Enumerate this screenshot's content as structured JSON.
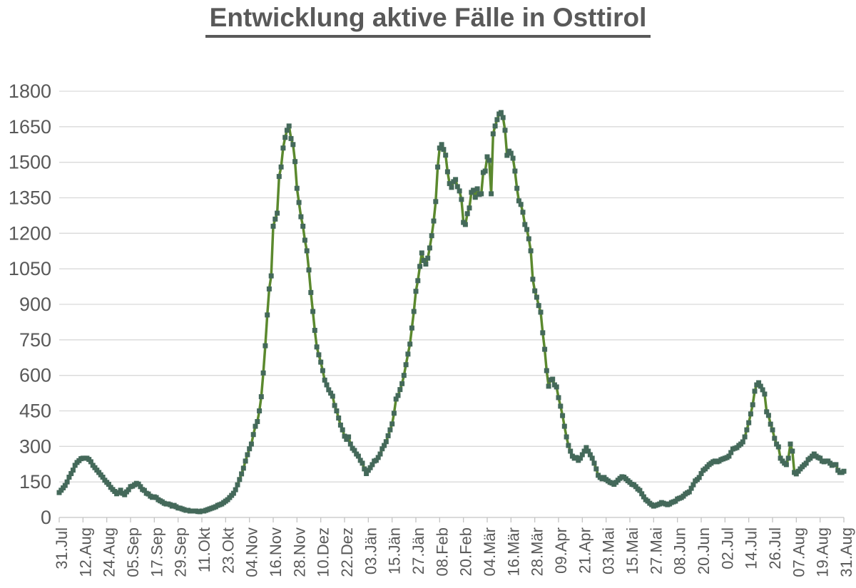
{
  "title": "Entwicklung aktive Fälle in Osttirol",
  "chart_data": {
    "type": "line",
    "title": "Entwicklung aktive Fälle in Osttirol",
    "frequency": "daily",
    "x_tick_interval_days": 12,
    "x_tick_labels": [
      "31.Jul",
      "12.Aug",
      "24.Aug",
      "05.Sep",
      "17.Sep",
      "29.Sep",
      "11.Okt",
      "23.Okt",
      "04.Nov",
      "16.Nov",
      "28.Nov",
      "10.Dez",
      "22.Dez",
      "03.Jän",
      "15.Jän",
      "27.Jän",
      "08.Feb",
      "20.Feb",
      "04.Mär",
      "16.Mär",
      "28.Mär",
      "09.Apr",
      "21.Apr",
      "03.Mai",
      "15.Mai",
      "27.Mai",
      "08.Jun",
      "20.Jun",
      "02.Jul",
      "14.Jul",
      "26.Jul",
      "07.Aug",
      "19.Aug",
      "31.Aug"
    ],
    "ylim": [
      0,
      1800
    ],
    "ytick_step": 150,
    "y_tick_labels": [
      "0",
      "150",
      "300",
      "450",
      "600",
      "750",
      "900",
      "1050",
      "1200",
      "1350",
      "1500",
      "1650",
      "1800"
    ],
    "grid": true,
    "legend": false,
    "line_color": "#5b892e",
    "marker_color": "#44695a",
    "marker_shape": "square",
    "axis_label_color": "#595959",
    "gridline_color": "#d9d9d9",
    "axis_line_color": "#c4c4c4",
    "title_color": "#595959",
    "background": "#ffffff",
    "values": [
      105,
      115,
      125,
      135,
      150,
      170,
      185,
      200,
      220,
      232,
      240,
      248,
      250,
      250,
      250,
      245,
      235,
      220,
      210,
      200,
      190,
      180,
      170,
      157,
      148,
      140,
      127,
      118,
      110,
      100,
      105,
      115,
      102,
      96,
      108,
      117,
      130,
      132,
      138,
      144,
      141,
      130,
      118,
      114,
      102,
      99,
      90,
      85,
      87,
      84,
      75,
      70,
      66,
      60,
      57,
      57,
      54,
      48,
      51,
      45,
      40,
      39,
      36,
      33,
      30,
      30,
      27,
      27,
      27,
      27,
      25,
      24,
      27,
      27,
      30,
      33,
      36,
      39,
      42,
      45,
      51,
      54,
      57,
      63,
      69,
      75,
      84,
      93,
      102,
      117,
      138,
      160,
      184,
      208,
      238,
      265,
      290,
      310,
      350,
      385,
      405,
      450,
      510,
      610,
      725,
      855,
      965,
      1020,
      1230,
      1260,
      1285,
      1440,
      1480,
      1560,
      1605,
      1635,
      1653,
      1600,
      1575,
      1503,
      1390,
      1330,
      1270,
      1230,
      1171,
      1126,
      1045,
      950,
      870,
      790,
      720,
      687,
      656,
      620,
      580,
      560,
      539,
      525,
      512,
      473,
      450,
      420,
      390,
      370,
      343,
      330,
      340,
      310,
      292,
      283,
      268,
      259,
      241,
      229,
      205,
      185,
      199,
      210,
      223,
      238,
      241,
      253,
      268,
      290,
      304,
      320,
      345,
      370,
      395,
      440,
      500,
      515,
      540,
      565,
      600,
      645,
      690,
      732,
      800,
      870,
      955,
      1000,
      1060,
      1117,
      1085,
      1070,
      1095,
      1138,
      1190,
      1252,
      1334,
      1480,
      1560,
      1575,
      1554,
      1530,
      1460,
      1410,
      1394,
      1418,
      1427,
      1397,
      1379,
      1343,
      1246,
      1237,
      1283,
      1307,
      1373,
      1382,
      1352,
      1388,
      1364,
      1367,
      1457,
      1463,
      1523,
      1508,
      1367,
      1620,
      1653,
      1680,
      1704,
      1710,
      1689,
      1635,
      1529,
      1547,
      1538,
      1517,
      1463,
      1390,
      1337,
      1322,
      1289,
      1237,
      1216,
      1177,
      1126,
      1006,
      957,
      930,
      895,
      867,
      780,
      710,
      620,
      554,
      581,
      584,
      560,
      551,
      506,
      470,
      430,
      385,
      340,
      304,
      280,
      259,
      250,
      253,
      241,
      250,
      265,
      280,
      295,
      280,
      265,
      250,
      229,
      205,
      178,
      169,
      163,
      169,
      160,
      154,
      148,
      145,
      140,
      148,
      157,
      165,
      172,
      170,
      163,
      155,
      148,
      140,
      138,
      130,
      120,
      114,
      100,
      87,
      75,
      69,
      60,
      54,
      48,
      51,
      54,
      57,
      63,
      60,
      57,
      54,
      57,
      63,
      66,
      69,
      78,
      81,
      84,
      90,
      99,
      104,
      108,
      123,
      138,
      154,
      160,
      169,
      185,
      199,
      205,
      214,
      223,
      229,
      235,
      238,
      235,
      238,
      244,
      247,
      250,
      253,
      259,
      274,
      289,
      292,
      295,
      304,
      310,
      319,
      340,
      370,
      400,
      437,
      476,
      533,
      560,
      569,
      554,
      539,
      521,
      446,
      431,
      394,
      370,
      334,
      310,
      298,
      250,
      238,
      229,
      223,
      250,
      310,
      280,
      190,
      184,
      195,
      205,
      214,
      222,
      229,
      244,
      250,
      259,
      268,
      259,
      253,
      250,
      238,
      235,
      238,
      238,
      229,
      220,
      223,
      223,
      199,
      190,
      190,
      195
    ]
  }
}
